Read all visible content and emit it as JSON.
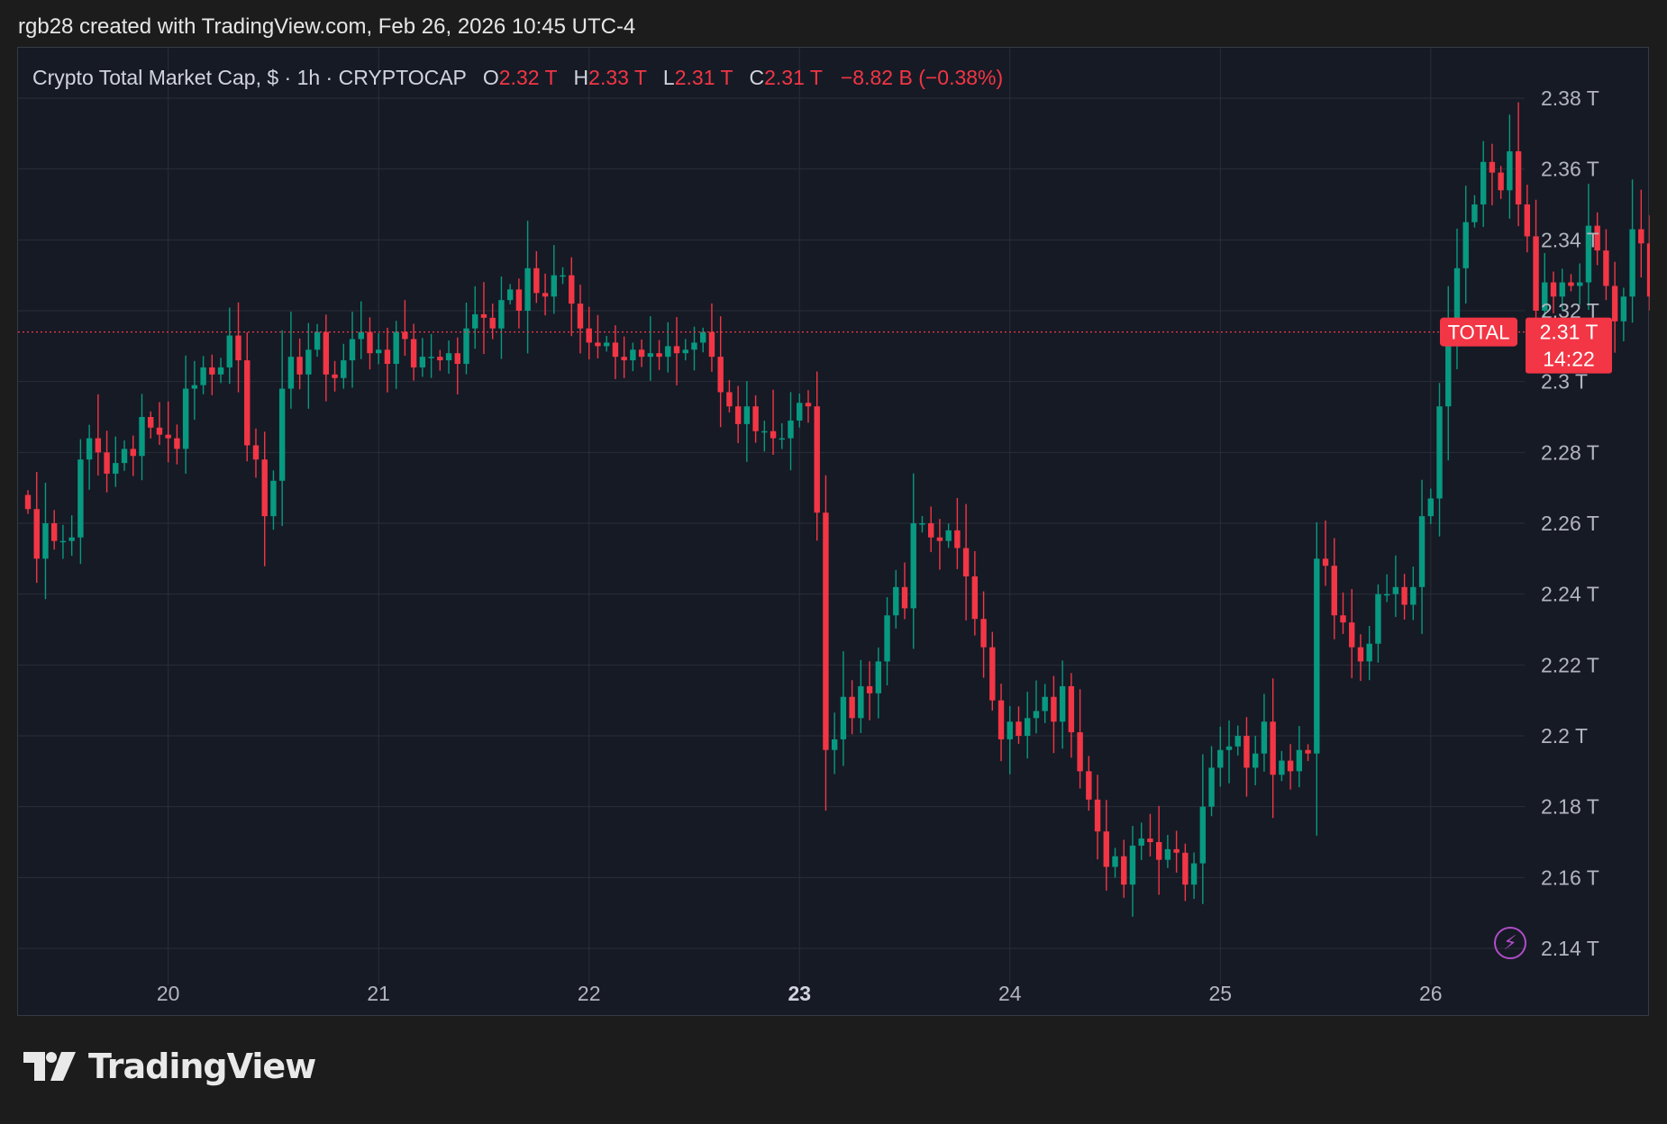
{
  "header": {
    "attribution": "rgb28 created with TradingView.com, Feb 26, 2026 10:45 UTC-4"
  },
  "legend": {
    "title": "Crypto Total Market Cap, $ · 1h · CRYPTOCAP",
    "open_label": "O",
    "open_value": "2.32 T",
    "high_label": "H",
    "high_value": "2.33 T",
    "low_label": "L",
    "low_value": "2.31 T",
    "close_label": "C",
    "close_value": "2.31 T",
    "change": "−8.82 B (−0.38%)"
  },
  "price_marker": {
    "symbol_label": "TOTAL",
    "price_label": "2.31 T",
    "countdown": "14:22"
  },
  "footer": {
    "brand": "TradingView"
  },
  "icons": {
    "bolt": "lightning-bolt-icon",
    "logo": "tradingview-logo-icon"
  },
  "colors": {
    "up": "#089981",
    "down": "#f23645",
    "background": "#161a25",
    "grid": "#2a2e39",
    "axis_text": "#b2b5be"
  },
  "chart_data": {
    "type": "candlestick",
    "title": "Crypto Total Market Cap, $ · 1h · CRYPTOCAP",
    "x_ticks": [
      {
        "label": "20",
        "index": 16,
        "bold": false
      },
      {
        "label": "21",
        "index": 40,
        "bold": false
      },
      {
        "label": "22",
        "index": 64,
        "bold": false
      },
      {
        "label": "23",
        "index": 88,
        "bold": true
      },
      {
        "label": "24",
        "index": 112,
        "bold": false
      },
      {
        "label": "25",
        "index": 136,
        "bold": false
      },
      {
        "label": "26",
        "index": 160,
        "bold": false
      }
    ],
    "y_ticks": [
      "2.14 T",
      "2.16 T",
      "2.18 T",
      "2.2 T",
      "2.22 T",
      "2.24 T",
      "2.26 T",
      "2.28 T",
      "2.3 T",
      "2.32 T",
      "2.34 T",
      "2.36 T",
      "2.38 T"
    ],
    "y_tick_values": [
      2.14,
      2.16,
      2.18,
      2.2,
      2.22,
      2.24,
      2.26,
      2.28,
      2.3,
      2.32,
      2.34,
      2.36,
      2.38
    ],
    "ylim": [
      2.13,
      2.395
    ],
    "last_price": 2.314,
    "grid": true,
    "close": [
      2.264,
      2.25,
      2.26,
      2.255,
      2.255,
      2.256,
      2.278,
      2.284,
      2.28,
      2.274,
      2.277,
      2.281,
      2.279,
      2.29,
      2.287,
      2.285,
      2.284,
      2.281,
      2.298,
      2.299,
      2.304,
      2.302,
      2.304,
      2.313,
      2.306,
      2.282,
      2.278,
      2.262,
      2.272,
      2.298,
      2.307,
      2.302,
      2.309,
      2.314,
      2.302,
      2.301,
      2.306,
      2.312,
      2.314,
      2.308,
      2.309,
      2.305,
      2.314,
      2.312,
      2.304,
      2.307,
      2.307,
      2.306,
      2.308,
      2.305,
      2.315,
      2.319,
      2.318,
      2.315,
      2.323,
      2.326,
      2.32,
      2.332,
      2.325,
      2.324,
      2.33,
      2.33,
      2.322,
      2.315,
      2.311,
      2.31,
      2.311,
      2.307,
      2.306,
      2.309,
      2.307,
      2.308,
      2.307,
      2.31,
      2.308,
      2.309,
      2.311,
      2.314,
      2.307,
      2.297,
      2.293,
      2.288,
      2.293,
      2.286,
      2.286,
      2.284,
      2.284,
      2.289,
      2.294,
      2.293,
      2.263,
      2.196,
      2.199,
      2.211,
      2.205,
      2.214,
      2.212,
      2.221,
      2.234,
      2.242,
      2.236,
      2.26,
      2.26,
      2.256,
      2.255,
      2.258,
      2.253,
      2.245,
      2.233,
      2.225,
      2.21,
      2.199,
      2.204,
      2.2,
      2.205,
      2.207,
      2.211,
      2.204,
      2.214,
      2.201,
      2.19,
      2.182,
      2.173,
      2.163,
      2.166,
      2.158,
      2.169,
      2.171,
      2.17,
      2.165,
      2.168,
      2.167,
      2.158,
      2.164,
      2.18,
      2.191,
      2.196,
      2.197,
      2.2,
      2.191,
      2.195,
      2.204,
      2.189,
      2.193,
      2.19,
      2.196,
      2.195,
      2.25,
      2.248,
      2.234,
      2.232,
      2.225,
      2.221,
      2.226,
      2.24,
      2.24,
      2.242,
      2.237,
      2.242,
      2.262,
      2.267,
      2.293,
      2.31,
      2.332,
      2.345,
      2.35,
      2.362,
      2.359,
      2.354,
      2.365,
      2.35,
      2.341,
      2.32,
      2.328,
      2.324,
      2.328,
      2.327,
      2.328,
      2.344,
      2.337,
      2.327,
      2.317,
      2.324,
      2.343,
      2.339,
      2.324,
      2.326,
      2.327,
      2.321,
      2.314
    ],
    "open_first": 2.268,
    "high_last": 2.33,
    "low_last": 2.31
  }
}
